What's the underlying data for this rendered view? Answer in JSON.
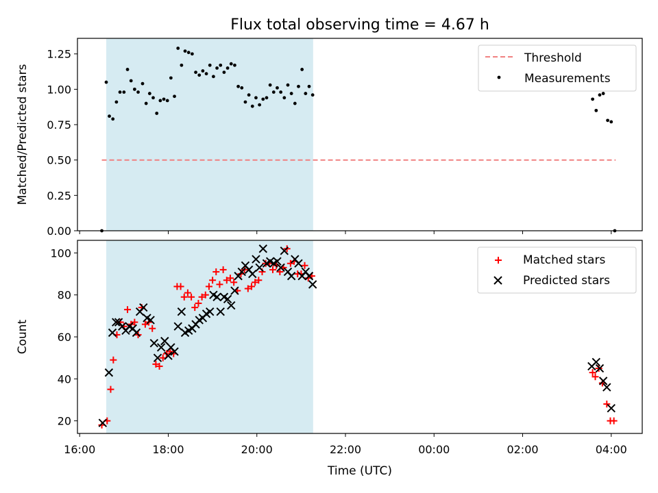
{
  "figure": {
    "title": "Flux total observing time = 4.67 h",
    "xlabel": "Time (UTC)"
  },
  "chart_data": [
    {
      "type": "scatter",
      "name": "ratio",
      "title": "Flux total observing time = 4.67 h",
      "xlabel": "",
      "ylabel": "Matched/Predicted stars",
      "xlim": [
        15.95,
        28.7
      ],
      "ylim": [
        0,
        1.36
      ],
      "yticks": [
        0.0,
        0.25,
        0.5,
        0.75,
        1.0,
        1.25
      ],
      "ytick_labels": [
        "0.00",
        "0.25",
        "0.50",
        "0.75",
        "1.00",
        "1.25"
      ],
      "xticks": [
        16,
        18,
        20,
        22,
        24,
        26,
        28
      ],
      "grid": false,
      "legend_position": "top-right",
      "highlight_span": {
        "x_start": 16.6,
        "x_end": 21.27,
        "color": "#add8e6"
      },
      "series": [
        {
          "name": "Threshold",
          "kind": "line",
          "color": "#f08080",
          "x": [
            16.5,
            28.1
          ],
          "y": [
            0.5,
            0.5
          ]
        },
        {
          "name": "Measurements",
          "kind": "scatter",
          "color": "#000000",
          "x": [
            16.5,
            16.6,
            16.67,
            16.75,
            16.83,
            16.91,
            17.0,
            17.08,
            17.16,
            17.24,
            17.32,
            17.42,
            17.5,
            17.58,
            17.66,
            17.74,
            17.82,
            17.9,
            17.98,
            18.06,
            18.14,
            18.22,
            18.3,
            18.38,
            18.46,
            18.54,
            18.62,
            18.7,
            18.78,
            18.86,
            18.94,
            19.02,
            19.1,
            19.18,
            19.26,
            19.34,
            19.42,
            19.5,
            19.58,
            19.66,
            19.74,
            19.82,
            19.9,
            19.98,
            20.06,
            20.14,
            20.22,
            20.3,
            20.38,
            20.46,
            20.54,
            20.62,
            20.7,
            20.78,
            20.86,
            20.94,
            21.02,
            21.1,
            21.18,
            21.26,
            27.58,
            27.66,
            27.74,
            27.82,
            27.92,
            28.0,
            28.08
          ],
          "y": [
            0.0,
            1.05,
            0.81,
            0.79,
            0.91,
            0.98,
            0.98,
            1.14,
            1.06,
            1.0,
            0.98,
            1.04,
            0.9,
            0.97,
            0.94,
            0.83,
            0.92,
            0.93,
            0.92,
            1.08,
            0.95,
            1.29,
            1.17,
            1.27,
            1.26,
            1.25,
            1.12,
            1.1,
            1.13,
            1.11,
            1.17,
            1.09,
            1.15,
            1.17,
            1.12,
            1.15,
            1.18,
            1.17,
            1.02,
            1.01,
            0.91,
            0.96,
            0.88,
            0.94,
            0.89,
            0.93,
            0.94,
            1.03,
            0.98,
            1.01,
            0.98,
            0.94,
            1.03,
            0.97,
            0.9,
            1.02,
            1.14,
            0.97,
            1.02,
            0.96,
            0.93,
            0.85,
            0.96,
            0.97,
            0.78,
            0.77,
            0.0
          ]
        }
      ]
    },
    {
      "type": "scatter",
      "name": "counts",
      "title": "",
      "xlabel": "Time (UTC)",
      "ylabel": "Count",
      "xlim": [
        15.95,
        28.7
      ],
      "ylim": [
        14,
        106
      ],
      "yticks": [
        20,
        40,
        60,
        80,
        100
      ],
      "ytick_labels": [
        "20",
        "40",
        "60",
        "80",
        "100"
      ],
      "xticks": [
        16,
        18,
        20,
        22,
        24,
        26,
        28
      ],
      "xtick_labels": [
        "16:00",
        "18:00",
        "20:00",
        "22:00",
        "00:00",
        "02:00",
        "04:00"
      ],
      "grid": false,
      "legend_position": "top-right",
      "highlight_span": {
        "x_start": 16.6,
        "x_end": 21.27,
        "color": "#add8e6"
      },
      "series": [
        {
          "name": "Matched stars",
          "marker": "plus",
          "color": "#ff0000",
          "x": [
            16.5,
            16.62,
            16.7,
            16.76,
            16.84,
            16.92,
            17.0,
            17.08,
            17.16,
            17.24,
            17.32,
            17.4,
            17.48,
            17.56,
            17.64,
            17.72,
            17.8,
            17.88,
            17.96,
            18.04,
            18.12,
            18.2,
            18.28,
            18.36,
            18.44,
            18.52,
            18.6,
            18.68,
            18.76,
            18.84,
            18.92,
            19.0,
            19.08,
            19.16,
            19.24,
            19.32,
            19.4,
            19.48,
            19.56,
            19.64,
            19.72,
            19.8,
            19.88,
            19.96,
            20.04,
            20.12,
            20.2,
            20.28,
            20.36,
            20.44,
            20.52,
            20.6,
            20.68,
            20.76,
            20.84,
            20.92,
            21.0,
            21.08,
            21.16,
            21.24,
            27.58,
            27.64,
            27.72,
            27.8,
            27.9,
            27.98,
            28.06
          ],
          "y": [
            18,
            20,
            35,
            49,
            61,
            67,
            65,
            73,
            66,
            67,
            61,
            74,
            66,
            67,
            64,
            47,
            46,
            50,
            52,
            53,
            52,
            84,
            84,
            79,
            81,
            79,
            74,
            76,
            79,
            80,
            84,
            87,
            91,
            85,
            92,
            87,
            88,
            86,
            82,
            90,
            92,
            83,
            84,
            86,
            87,
            91,
            95,
            95,
            92,
            94,
            91,
            93,
            102,
            95,
            96,
            90,
            90,
            94,
            88,
            89,
            43,
            41,
            45,
            38,
            28,
            20,
            20
          ]
        },
        {
          "name": "Predicted stars",
          "marker": "x",
          "color": "#000000",
          "x": [
            16.52,
            16.66,
            16.74,
            16.82,
            16.88,
            16.96,
            17.04,
            17.12,
            17.2,
            17.28,
            17.36,
            17.44,
            17.52,
            17.6,
            17.68,
            17.76,
            17.84,
            17.92,
            18.0,
            18.06,
            18.14,
            18.22,
            18.3,
            18.38,
            18.46,
            18.54,
            18.62,
            18.7,
            18.78,
            18.86,
            18.94,
            19.02,
            19.1,
            19.18,
            19.26,
            19.34,
            19.42,
            19.5,
            19.58,
            19.66,
            19.74,
            19.82,
            19.9,
            19.98,
            20.06,
            20.14,
            20.22,
            20.3,
            20.38,
            20.46,
            20.54,
            20.62,
            20.7,
            20.78,
            20.86,
            20.94,
            21.02,
            21.1,
            21.18,
            21.26,
            27.56,
            27.66,
            27.74,
            27.82,
            27.9,
            28.0
          ],
          "y": [
            19,
            43,
            62,
            67,
            67,
            65,
            63,
            65,
            64,
            62,
            72,
            74,
            69,
            68,
            57,
            50,
            55,
            58,
            51,
            55,
            53,
            65,
            72,
            62,
            63,
            64,
            66,
            68,
            69,
            71,
            72,
            80,
            79,
            72,
            79,
            78,
            75,
            82,
            89,
            91,
            94,
            92,
            90,
            97,
            93,
            102,
            95,
            96,
            95,
            96,
            93,
            101,
            91,
            89,
            97,
            95,
            89,
            91,
            89,
            85,
            46,
            48,
            45,
            39,
            36,
            26
          ]
        }
      ]
    }
  ]
}
